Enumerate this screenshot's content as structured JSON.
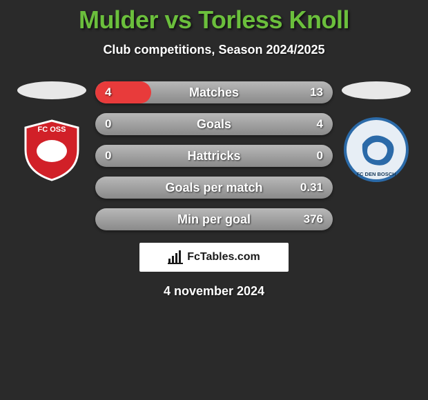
{
  "title_color": "#6bbf3c",
  "title": "Mulder vs Torless Knoll",
  "subtitle": "Club competitions, Season 2024/2025",
  "date": "4 november 2024",
  "attribution": "FcTables.com",
  "background_color": "#2a2a2a",
  "left_fill_color": "#e83b3b",
  "row_bg_from": "#b8b8b8",
  "row_bg_to": "#8a8a8a",
  "crest_left": {
    "name": "FC OSS",
    "bg": "#d12028",
    "border": "#ffffff"
  },
  "crest_right": {
    "name": "FC DEN BOSCH",
    "bg": "#e7eef5",
    "border": "#2b6aa8"
  },
  "rows": [
    {
      "label": "Matches",
      "left": "4",
      "right": "13",
      "left_ratio": 0.2353
    },
    {
      "label": "Goals",
      "left": "0",
      "right": "4",
      "left_ratio": 0.0
    },
    {
      "label": "Hattricks",
      "left": "0",
      "right": "0",
      "left_ratio": 0.0
    },
    {
      "label": "Goals per match",
      "left": "",
      "right": "0.31",
      "left_ratio": 0.0
    },
    {
      "label": "Min per goal",
      "left": "",
      "right": "376",
      "left_ratio": 0.0
    }
  ]
}
